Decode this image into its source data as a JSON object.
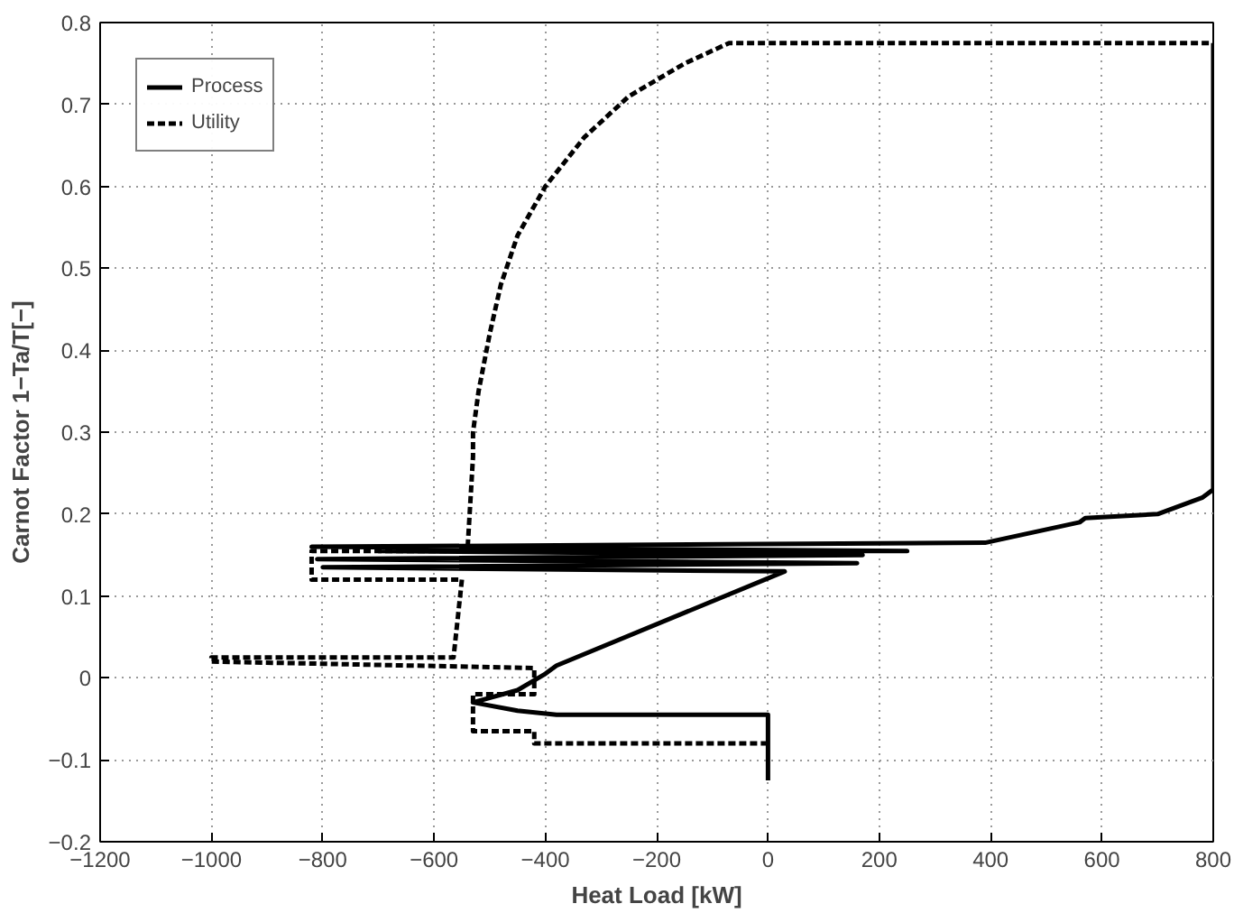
{
  "chart_data": {
    "type": "line",
    "xlabel": "Heat Load [kW]",
    "ylabel": "Carnot Factor 1−Ta/T[−]",
    "xlim": [
      -1200,
      800
    ],
    "ylim": [
      -0.2,
      0.8
    ],
    "xticks": [
      -1200,
      -1000,
      -800,
      -600,
      -400,
      -200,
      0,
      200,
      400,
      600,
      800
    ],
    "yticks": [
      -0.2,
      -0.1,
      0,
      0.1,
      0.2,
      0.3,
      0.4,
      0.5,
      0.6,
      0.7,
      0.8
    ],
    "grid": true,
    "legend": "top left",
    "series": [
      {
        "name": "Process",
        "color": "#000000",
        "line_style": "solid",
        "x": [
          0,
          0,
          -380,
          -450,
          -530,
          -450,
          -400,
          -380,
          30,
          -800,
          160,
          -810,
          170,
          -700,
          250,
          -820,
          390,
          560,
          570,
          700,
          780,
          800,
          800
        ],
        "values": [
          -0.125,
          -0.045,
          -0.045,
          -0.04,
          -0.03,
          -0.015,
          0.005,
          0.015,
          0.13,
          0.135,
          0.14,
          0.145,
          0.15,
          0.155,
          0.155,
          0.16,
          0.165,
          0.19,
          0.195,
          0.2,
          0.22,
          0.23,
          0.775
        ]
      },
      {
        "name": "Utility",
        "color": "#000000",
        "line_style": "dashed",
        "x": [
          0,
          -420,
          -420,
          -530,
          -530,
          -420,
          -420,
          -1000,
          -1000,
          -565,
          -550,
          -820,
          -820,
          -540,
          -530,
          -530,
          -520,
          -500,
          -480,
          -450,
          -400,
          -330,
          -250,
          -150,
          -70,
          800
        ],
        "values": [
          -0.08,
          -0.08,
          -0.065,
          -0.065,
          -0.02,
          -0.02,
          0.012,
          0.02,
          0.025,
          0.025,
          0.12,
          0.12,
          0.155,
          0.155,
          0.27,
          0.3,
          0.35,
          0.42,
          0.48,
          0.54,
          0.6,
          0.66,
          0.71,
          0.75,
          0.775,
          0.775
        ]
      }
    ]
  }
}
